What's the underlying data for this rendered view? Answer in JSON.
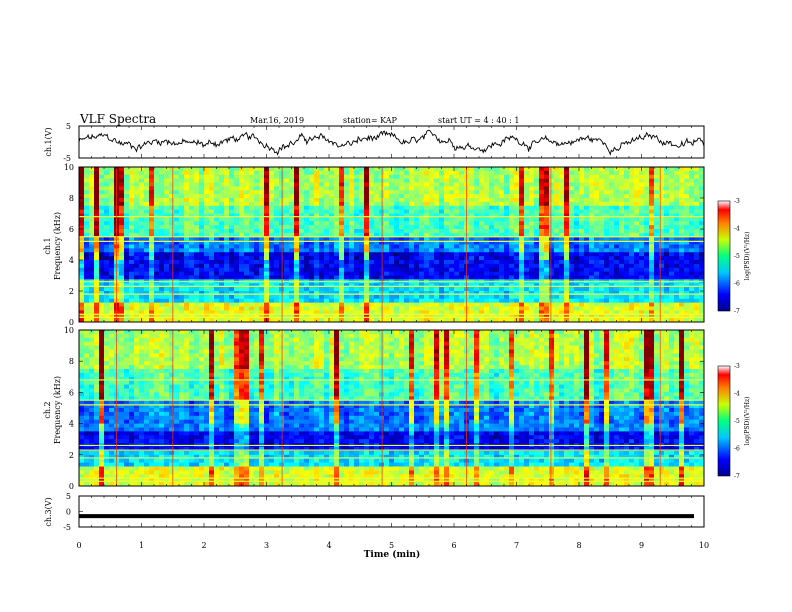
{
  "header": {
    "title": "VLF Spectra",
    "date": "Mar.16, 2019",
    "station": "station= KAP",
    "start": "start  UT =   4 : 40 : 1"
  },
  "chart_data": [
    {
      "type": "line",
      "name": "ch1-waveform",
      "ylabel": "ch.1(V)",
      "ylim": [
        -5,
        5
      ],
      "yticks": [
        "5",
        "-5"
      ],
      "xlim": [
        0,
        10
      ]
    },
    {
      "type": "heatmap",
      "name": "ch1-spectrogram",
      "ylabel": "ch.1\nFrequency (kHz)",
      "ylabel_line1": "ch.1",
      "ylabel_line2": "Frequency (kHz)",
      "ylim": [
        0,
        10
      ],
      "yticks": [
        "0",
        "2",
        "4",
        "6",
        "8",
        "10"
      ],
      "xlim": [
        0,
        10
      ],
      "colorbar": {
        "label": "log(PSD)(V²/Hz)",
        "range": [
          -7,
          -3
        ],
        "ticks": [
          "-3",
          "-4",
          "-5",
          "-6",
          "-7"
        ]
      }
    },
    {
      "type": "heatmap",
      "name": "ch2-spectrogram",
      "ylabel_line1": "ch.2",
      "ylabel_line2": "Frequency (kHz)",
      "ylim": [
        0,
        10
      ],
      "yticks": [
        "0",
        "2",
        "4",
        "6",
        "8",
        "10"
      ],
      "xlim": [
        0,
        10
      ],
      "colorbar": {
        "label": "log(PSD)(V²/Hz)",
        "range": [
          -7,
          -3
        ],
        "ticks": [
          "-3",
          "-4",
          "-5",
          "-6",
          "-7"
        ]
      }
    },
    {
      "type": "line",
      "name": "ch3-waveform",
      "ylabel": "ch.3(V)",
      "ylim": [
        -5,
        5
      ],
      "yticks": [
        "5",
        "0",
        "-5"
      ],
      "xlim": [
        0,
        10
      ],
      "constant_value": -1.5
    }
  ],
  "xaxis": {
    "label": "Time  (min)",
    "ticks": [
      "0",
      "1",
      "2",
      "3",
      "4",
      "5",
      "6",
      "7",
      "8",
      "9",
      "10"
    ]
  }
}
